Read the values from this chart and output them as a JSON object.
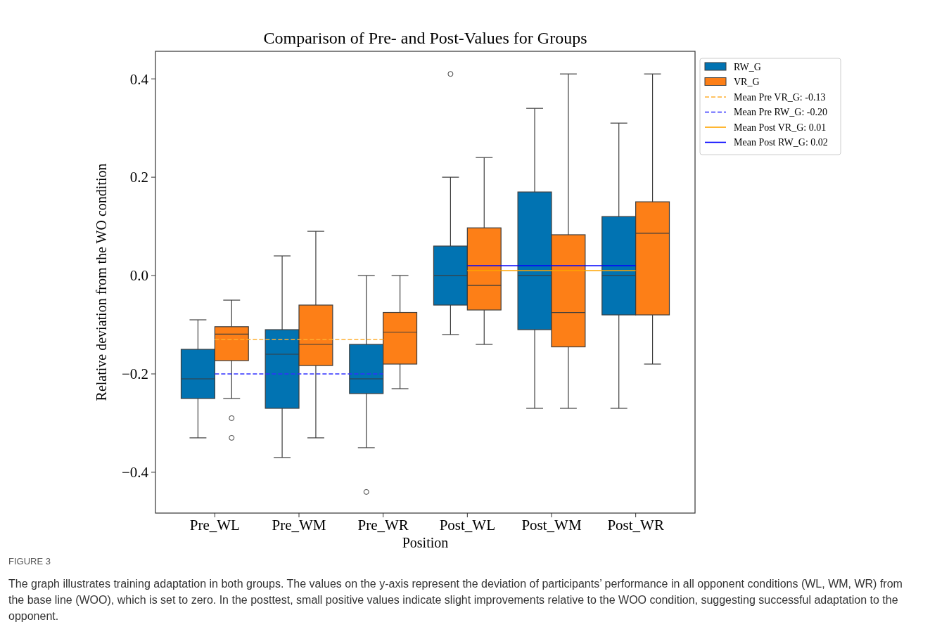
{
  "chart_data": {
    "type": "box",
    "title": "Comparison of Pre- and Post-Values for Groups",
    "xlabel": "Position",
    "ylabel": "Relative deviation from the WO condition",
    "categories": [
      "Pre_WL",
      "Pre_WM",
      "Pre_WR",
      "Post_WL",
      "Post_WM",
      "Post_WR"
    ],
    "ylim": [
      -0.483,
      0.456
    ],
    "yticks": [
      {
        "value": -0.4,
        "label": "−0.4"
      },
      {
        "value": -0.2,
        "label": "−0.2"
      },
      {
        "value": 0,
        "label": "0.0"
      },
      0.2,
      0.4
    ],
    "grid": false,
    "legend": "top right",
    "series": [
      {
        "name": "RW_G",
        "color": "#0173b2",
        "boxes": [
          {
            "low": -0.33,
            "q1": -0.25,
            "median": -0.21,
            "q3": -0.15,
            "high": -0.09
          },
          {
            "low": -0.37,
            "q1": -0.27,
            "median": -0.16,
            "q3": -0.11,
            "high": 0.04
          },
          {
            "low": -0.35,
            "q1": -0.24,
            "median": -0.21,
            "q3": -0.14,
            "high": 0,
            "outliers": [
              -0.44
            ]
          },
          {
            "low": -0.12,
            "q1": -0.06,
            "median": 0,
            "q3": 0.06,
            "high": 0.2,
            "outliers": [
              0.41
            ]
          },
          {
            "low": -0.27,
            "q1": -0.11,
            "median": 0,
            "q3": 0.17,
            "high": 0.34
          },
          {
            "low": -0.27,
            "q1": -0.08,
            "median": 0,
            "q3": 0.12,
            "high": 0.31
          }
        ]
      },
      {
        "name": "VR_G",
        "color": "#fd7f17",
        "boxes": [
          {
            "low": -0.25,
            "q1": -0.173,
            "median": -0.119,
            "q3": -0.104,
            "high": -0.05,
            "outliers": [
              -0.29,
              -0.33
            ]
          },
          {
            "low": -0.33,
            "q1": -0.183,
            "median": -0.14,
            "q3": -0.06,
            "high": 0.09
          },
          {
            "low": -0.23,
            "q1": -0.18,
            "median": -0.115,
            "q3": -0.075,
            "high": 0
          },
          {
            "low": -0.14,
            "q1": -0.07,
            "median": -0.02,
            "q3": 0.097,
            "high": 0.24
          },
          {
            "low": -0.27,
            "q1": -0.145,
            "median": -0.075,
            "q3": 0.083,
            "high": 0.41
          },
          {
            "low": -0.18,
            "q1": -0.08,
            "median": 0.086,
            "q3": 0.15,
            "high": 0.41
          }
        ]
      },
      {
        "name": "Mean Pre VR_G: -0.13",
        "type": "line",
        "color": "#ffb030",
        "line_style": "dashed",
        "values": [
          -0.13,
          -0.13,
          -0.13,
          null,
          null,
          null
        ]
      },
      {
        "name": "Mean Pre RW_G: -0.20",
        "type": "line",
        "color": "#3030ff",
        "line_style": "dashed",
        "values": [
          -0.2,
          -0.2,
          -0.2,
          null,
          null,
          null
        ]
      },
      {
        "name": "Mean Post VR_G: 0.01",
        "type": "line",
        "color": "#ffa500",
        "line_style": "solid",
        "values": [
          null,
          null,
          null,
          0.01,
          0.01,
          0.01
        ]
      },
      {
        "name": "Mean Post RW_G: 0.02",
        "type": "line",
        "color": "#0000ff",
        "line_style": "solid",
        "values": [
          null,
          null,
          null,
          0.02,
          0.02,
          0.02
        ]
      }
    ],
    "annotations": [
      "FIGURE 3",
      "The graph illustrates training adaptation in both groups. The values on the y-axis represent the deviation of participants’ performance in all opponent conditions (WL, WM, WR) from the base line (WOO), which is set to zero. In the posttest, small positive values indicate slight improvements relative to the WOO condition, suggesting successful adaptation to the opponent."
    ]
  }
}
